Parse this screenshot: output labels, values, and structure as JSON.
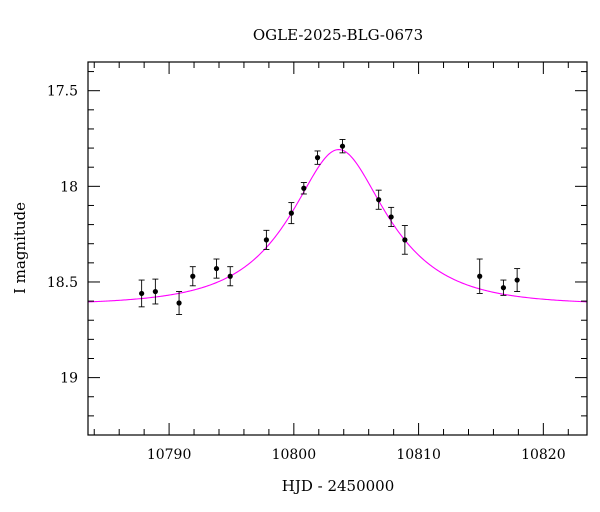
{
  "chart_data": {
    "type": "scatter",
    "title": "OGLE-2025-BLG-0673",
    "xlabel": "HJD - 2450000",
    "ylabel": "I magnitude",
    "xlim": [
      10783.5,
      10823.5
    ],
    "ylim": [
      19.3,
      17.35
    ],
    "y_inverted": true,
    "x_ticks": [
      10790,
      10800,
      10810,
      10820
    ],
    "y_ticks": [
      17.5,
      18,
      18.5,
      19
    ],
    "x_tick_labels": [
      "10790",
      "10800",
      "10810",
      "10820"
    ],
    "y_tick_labels": [
      "17.5",
      "18",
      "18.5",
      "19"
    ],
    "grid": false,
    "legend": "none",
    "points_color": "#000000",
    "model_color": "#ff00ff",
    "points": [
      {
        "x": 10787.8,
        "y": 18.56,
        "err": 0.07
      },
      {
        "x": 10788.9,
        "y": 18.55,
        "err": 0.065
      },
      {
        "x": 10790.8,
        "y": 18.61,
        "err": 0.06
      },
      {
        "x": 10791.9,
        "y": 18.47,
        "err": 0.05
      },
      {
        "x": 10793.8,
        "y": 18.43,
        "err": 0.05
      },
      {
        "x": 10794.9,
        "y": 18.47,
        "err": 0.05
      },
      {
        "x": 10797.8,
        "y": 18.28,
        "err": 0.05
      },
      {
        "x": 10799.8,
        "y": 18.14,
        "err": 0.055
      },
      {
        "x": 10800.8,
        "y": 18.01,
        "err": 0.03
      },
      {
        "x": 10801.9,
        "y": 17.85,
        "err": 0.035
      },
      {
        "x": 10803.9,
        "y": 17.79,
        "err": 0.035
      },
      {
        "x": 10806.8,
        "y": 18.07,
        "err": 0.05
      },
      {
        "x": 10807.8,
        "y": 18.16,
        "err": 0.05
      },
      {
        "x": 10808.9,
        "y": 18.28,
        "err": 0.075
      },
      {
        "x": 10814.9,
        "y": 18.47,
        "err": 0.09
      },
      {
        "x": 10816.8,
        "y": 18.53,
        "err": 0.04
      },
      {
        "x": 10817.9,
        "y": 18.49,
        "err": 0.06
      }
    ],
    "model": {
      "type": "paczynski",
      "t0": 10803.6,
      "u0": 0.52,
      "tE": 6.5,
      "baseline_mag": 18.62
    }
  }
}
